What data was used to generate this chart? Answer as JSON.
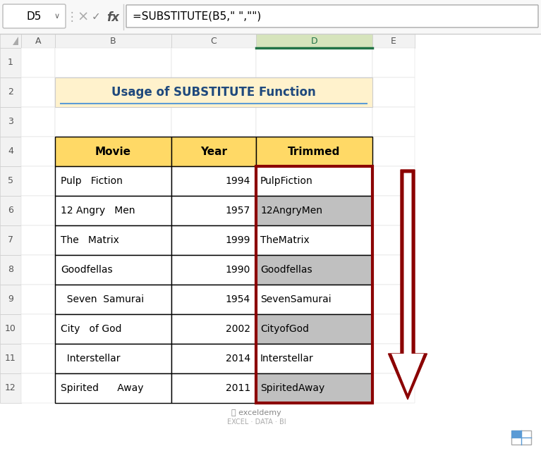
{
  "title": "Usage of SUBSTITUTE Function",
  "formula_bar_cell": "D5",
  "formula_bar_text": "=SUBSTITUTE(B5,\" \",\"\")",
  "col_headers": [
    "A",
    "B",
    "C",
    "D",
    "E"
  ],
  "table_headers": [
    "Movie",
    "Year",
    "Trimmed"
  ],
  "movies": [
    "Pulp   Fiction",
    "12 Angry   Men",
    "The   Matrix",
    "Goodfellas",
    "  Seven  Samurai",
    "City   of God",
    "  Interstellar",
    "Spirited      Away"
  ],
  "years": [
    "1994",
    "1957",
    "1999",
    "1990",
    "1954",
    "2002",
    "2014",
    "2011"
  ],
  "trimmed": [
    "PulpFiction",
    "12AngryMen",
    "TheMatrix",
    "Goodfellas",
    "SevenSamurai",
    "CityofGod",
    "Interstellar",
    "SpiritedAway"
  ],
  "header_bg": "#FFD966",
  "title_bg": "#FFF2CC",
  "trimmed_bg_gray": "#C0C0C0",
  "trimmed_bg_white": "#FFFFFF",
  "highlight_border_color": "#8B0000",
  "arrow_color": "#8B0000",
  "excel_bg": "#F2F2F2",
  "cell_bg": "#FFFFFF",
  "col_header_bg": "#F2F2F2",
  "active_col_header_bg": "#D6E4BC",
  "active_col_header_color": "#217346",
  "row_header_bg": "#F2F2F2",
  "grid_color": "#D0D0D0",
  "border_color": "#000000",
  "title_color": "#1F497D",
  "title_underline_color": "#5B9BD5"
}
